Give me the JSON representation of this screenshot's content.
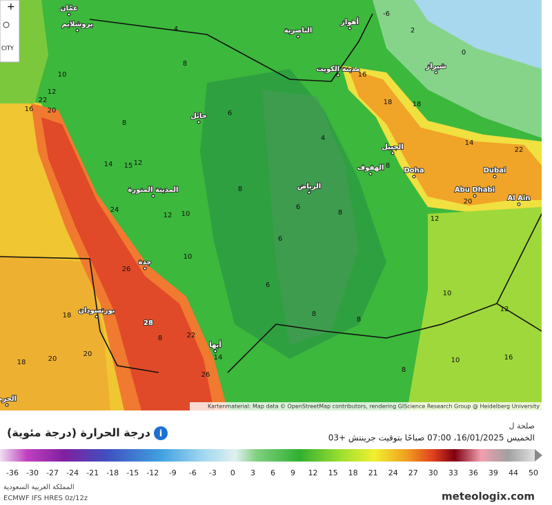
{
  "map": {
    "controls": {
      "city": "CITY"
    },
    "attribution": "Kartenmaterial: Map data © OpenStreetMap contributors, rendering GIScience Research Group @ Heidelberg University",
    "cities": [
      "عمّان",
      "يروشلايم",
      "الناصرية",
      "أهواز",
      "شيراز",
      "مدينة الكويت",
      "حائل",
      "الجبيل",
      "الهفوف",
      "Doha",
      "الرياض",
      "Dubai",
      "Abu Dhabi",
      "Al Ain",
      "المدينة المنورة",
      "جدة",
      "بورتسودان",
      "أبها",
      "الحرم"
    ],
    "temperature_labels": [
      4,
      8,
      10,
      12,
      16,
      20,
      22,
      8,
      6,
      4,
      8,
      6,
      8,
      18,
      16,
      18,
      14,
      22,
      20,
      8,
      12,
      10,
      12,
      10,
      16,
      8,
      8,
      8,
      6,
      6,
      10,
      10,
      12,
      14,
      15,
      12,
      24,
      26,
      18,
      20,
      18,
      20,
      28,
      22,
      14,
      26,
      8,
      -6,
      2,
      0
    ]
  },
  "panel": {
    "top_label": "صلحة ل",
    "valid_time": "الخميس 16/01/2025، 07:00 صباحًا بتوقيت جرينتش +03",
    "title": "درجة الحرارة (درجة مئوية)",
    "scale_ticks": [
      -36,
      -30,
      -27,
      -24,
      -21,
      -18,
      -15,
      -12,
      -9,
      -6,
      -3,
      0,
      3,
      6,
      9,
      12,
      15,
      18,
      21,
      24,
      27,
      30,
      33,
      36,
      39,
      44,
      50
    ],
    "region": "المملكة العربية السعودية",
    "model": "ECMWF IFS HRES 0z/12z",
    "brand": "meteologix.com"
  }
}
